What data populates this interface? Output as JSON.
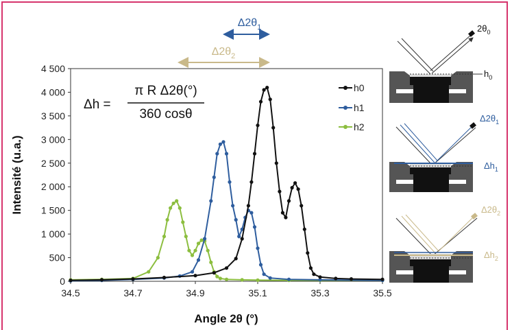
{
  "chart_data": {
    "type": "line",
    "xlabel": "Angle 2θ (°)",
    "ylabel": "Intensité (u.a.)",
    "xlim": [
      34.5,
      35.5
    ],
    "ylim": [
      0,
      4500
    ],
    "x_ticks": [
      "34.5",
      "34.7",
      "34.9",
      "35.1",
      "35.3",
      "35.5"
    ],
    "y_ticks": [
      "0",
      "500",
      "1 000",
      "1 500",
      "2 000",
      "2 500",
      "3 000",
      "3 500",
      "4 000",
      "4 500"
    ],
    "grid": false,
    "legend_position": "top-right",
    "series": [
      {
        "name": "h0",
        "color": "#111111",
        "x": [
          34.5,
          34.6,
          34.7,
          34.8,
          34.9,
          34.96,
          35.0,
          35.03,
          35.05,
          35.07,
          35.08,
          35.09,
          35.1,
          35.11,
          35.12,
          35.13,
          35.14,
          35.15,
          35.16,
          35.17,
          35.18,
          35.19,
          35.2,
          35.21,
          35.22,
          35.23,
          35.24,
          35.25,
          35.26,
          35.27,
          35.28,
          35.3,
          35.35,
          35.4,
          35.5
        ],
        "y": [
          20,
          30,
          50,
          80,
          120,
          180,
          280,
          480,
          900,
          1600,
          2100,
          2700,
          3300,
          3800,
          4050,
          4100,
          3850,
          3250,
          2500,
          1900,
          1450,
          1350,
          1700,
          1980,
          2080,
          1950,
          1600,
          1100,
          600,
          280,
          150,
          90,
          60,
          50,
          40
        ]
      },
      {
        "name": "h1",
        "color": "#2e5d9e",
        "x": [
          34.5,
          34.6,
          34.7,
          34.8,
          34.85,
          34.89,
          34.91,
          34.93,
          34.95,
          34.96,
          34.97,
          34.98,
          34.99,
          35.0,
          35.01,
          35.02,
          35.03,
          35.04,
          35.05,
          35.06,
          35.07,
          35.08,
          35.09,
          35.1,
          35.11,
          35.12,
          35.14,
          35.2,
          35.3,
          35.5
        ],
        "y": [
          10,
          20,
          40,
          70,
          110,
          200,
          450,
          900,
          1700,
          2200,
          2700,
          2900,
          2950,
          2700,
          2100,
          1600,
          1300,
          950,
          1100,
          1350,
          1500,
          1450,
          1150,
          700,
          350,
          150,
          70,
          40,
          30,
          20
        ]
      },
      {
        "name": "h2",
        "color": "#8cbe3f",
        "x": [
          34.5,
          34.6,
          34.7,
          34.75,
          34.78,
          34.8,
          34.81,
          34.82,
          34.83,
          34.84,
          34.85,
          34.86,
          34.87,
          34.88,
          34.89,
          34.9,
          34.91,
          34.92,
          34.93,
          34.94,
          34.95,
          34.96,
          34.97,
          34.98,
          35.0,
          35.05,
          35.1,
          35.2,
          35.3,
          35.5
        ],
        "y": [
          30,
          40,
          60,
          200,
          500,
          950,
          1300,
          1550,
          1650,
          1700,
          1550,
          1250,
          950,
          650,
          550,
          650,
          800,
          870,
          850,
          650,
          400,
          200,
          100,
          60,
          40,
          30,
          25,
          20,
          20,
          20
        ]
      }
    ]
  },
  "formula": {
    "lhs": "Δh =",
    "numerator": "π R Δ2θ(°)",
    "denominator": "360 cosθ"
  },
  "arrows": {
    "top_base": "Δ2θ",
    "top_sub": "1",
    "second_base": "Δ2θ",
    "second_sub": "2"
  },
  "diagram": {
    "panel1_angle_base": "2θ",
    "panel1_angle_sub": "0",
    "panel1_height_base": "h",
    "panel1_height_sub": "0",
    "panel2_angle_base": "Δ2θ",
    "panel2_angle_sub": "1",
    "panel2_height_base": "Δh",
    "panel2_height_sub": "1",
    "panel3_angle_base": "Δ2θ",
    "panel3_angle_sub": "2",
    "panel3_height_base": "Δh",
    "panel3_height_sub": "2"
  },
  "colors": {
    "h0": "#111111",
    "h1": "#2e5d9e",
    "h2": "#8cbe3f",
    "tan": "#c9b98a",
    "frame": "#d6336c"
  }
}
